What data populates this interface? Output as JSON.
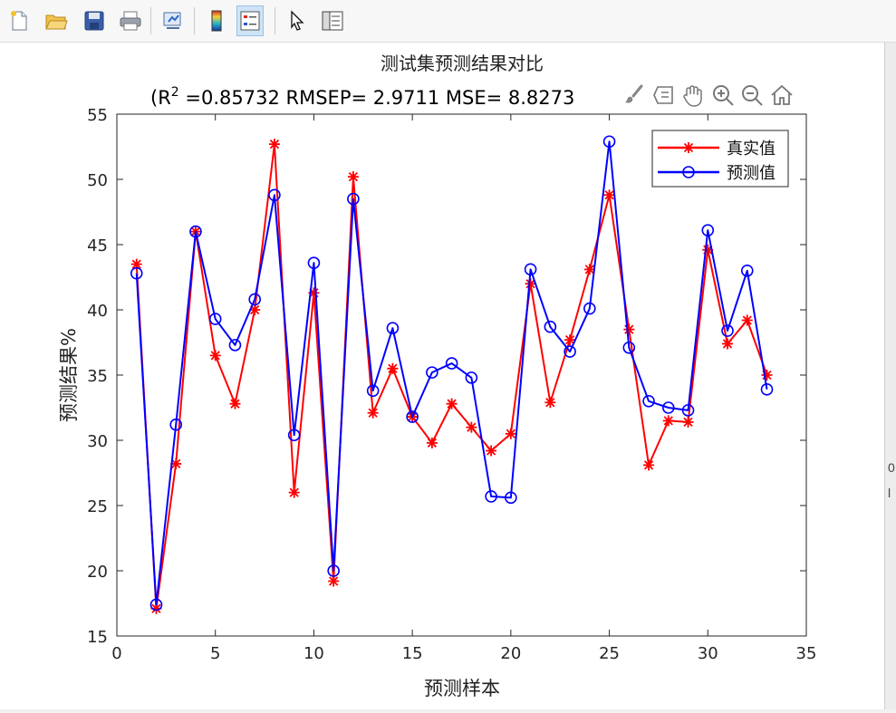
{
  "toolbar": {
    "buttons": [
      {
        "name": "new-figure-icon"
      },
      {
        "name": "open-file-icon"
      },
      {
        "name": "save-icon"
      },
      {
        "name": "print-icon"
      },
      {
        "name": "link-plot-icon"
      },
      {
        "name": "colorbar-icon"
      },
      {
        "name": "legend-icon",
        "active": true
      },
      {
        "name": "pointer-icon"
      },
      {
        "name": "property-inspector-icon"
      }
    ]
  },
  "axes_toolbar": [
    "brush-icon",
    "data-tips-icon",
    "pan-icon",
    "zoom-in-icon",
    "zoom-out-icon",
    "home-icon"
  ],
  "edge_text": [
    "0",
    "l"
  ],
  "chart_data": {
    "type": "line",
    "title": "测试集预测结果对比",
    "subtitle_prefix": "(R",
    "subtitle_sup": "2",
    "subtitle_rest": " =0.85732 RMSEP= 2.9711 MSE= 8.8273",
    "xlabel": "预测样本",
    "ylabel": "预测结果%",
    "xlim": [
      0,
      35
    ],
    "ylim": [
      15,
      55
    ],
    "xticks": [
      0,
      5,
      10,
      15,
      20,
      25,
      30,
      35
    ],
    "yticks": [
      15,
      20,
      25,
      30,
      35,
      40,
      45,
      50,
      55
    ],
    "grid": false,
    "legend_position": "top-right",
    "x": [
      1,
      2,
      3,
      4,
      5,
      6,
      7,
      8,
      9,
      10,
      11,
      12,
      13,
      14,
      15,
      16,
      17,
      18,
      19,
      20,
      21,
      22,
      23,
      24,
      25,
      26,
      27,
      28,
      29,
      30,
      31,
      32,
      33
    ],
    "series": [
      {
        "name": "真实值",
        "color": "#ff0000",
        "marker": "asterisk",
        "values": [
          43.5,
          17.1,
          28.2,
          46.0,
          36.5,
          32.8,
          40.0,
          52.7,
          26.0,
          41.3,
          19.2,
          50.2,
          32.1,
          35.5,
          31.8,
          29.8,
          32.8,
          31.0,
          29.2,
          30.5,
          42.0,
          32.9,
          37.7,
          43.1,
          48.8,
          38.5,
          28.1,
          31.5,
          31.4,
          44.6,
          37.4,
          39.2,
          35.0
        ]
      },
      {
        "name": "预测值",
        "color": "#0000ff",
        "marker": "circle",
        "values": [
          42.8,
          17.4,
          31.2,
          46.0,
          39.3,
          37.3,
          40.8,
          48.8,
          30.4,
          43.6,
          20.0,
          48.5,
          33.8,
          38.6,
          31.8,
          35.2,
          35.9,
          34.8,
          25.7,
          25.6,
          43.1,
          38.7,
          36.8,
          40.1,
          52.9,
          37.1,
          33.0,
          32.5,
          32.3,
          46.1,
          38.4,
          43.0,
          33.9
        ]
      }
    ]
  }
}
